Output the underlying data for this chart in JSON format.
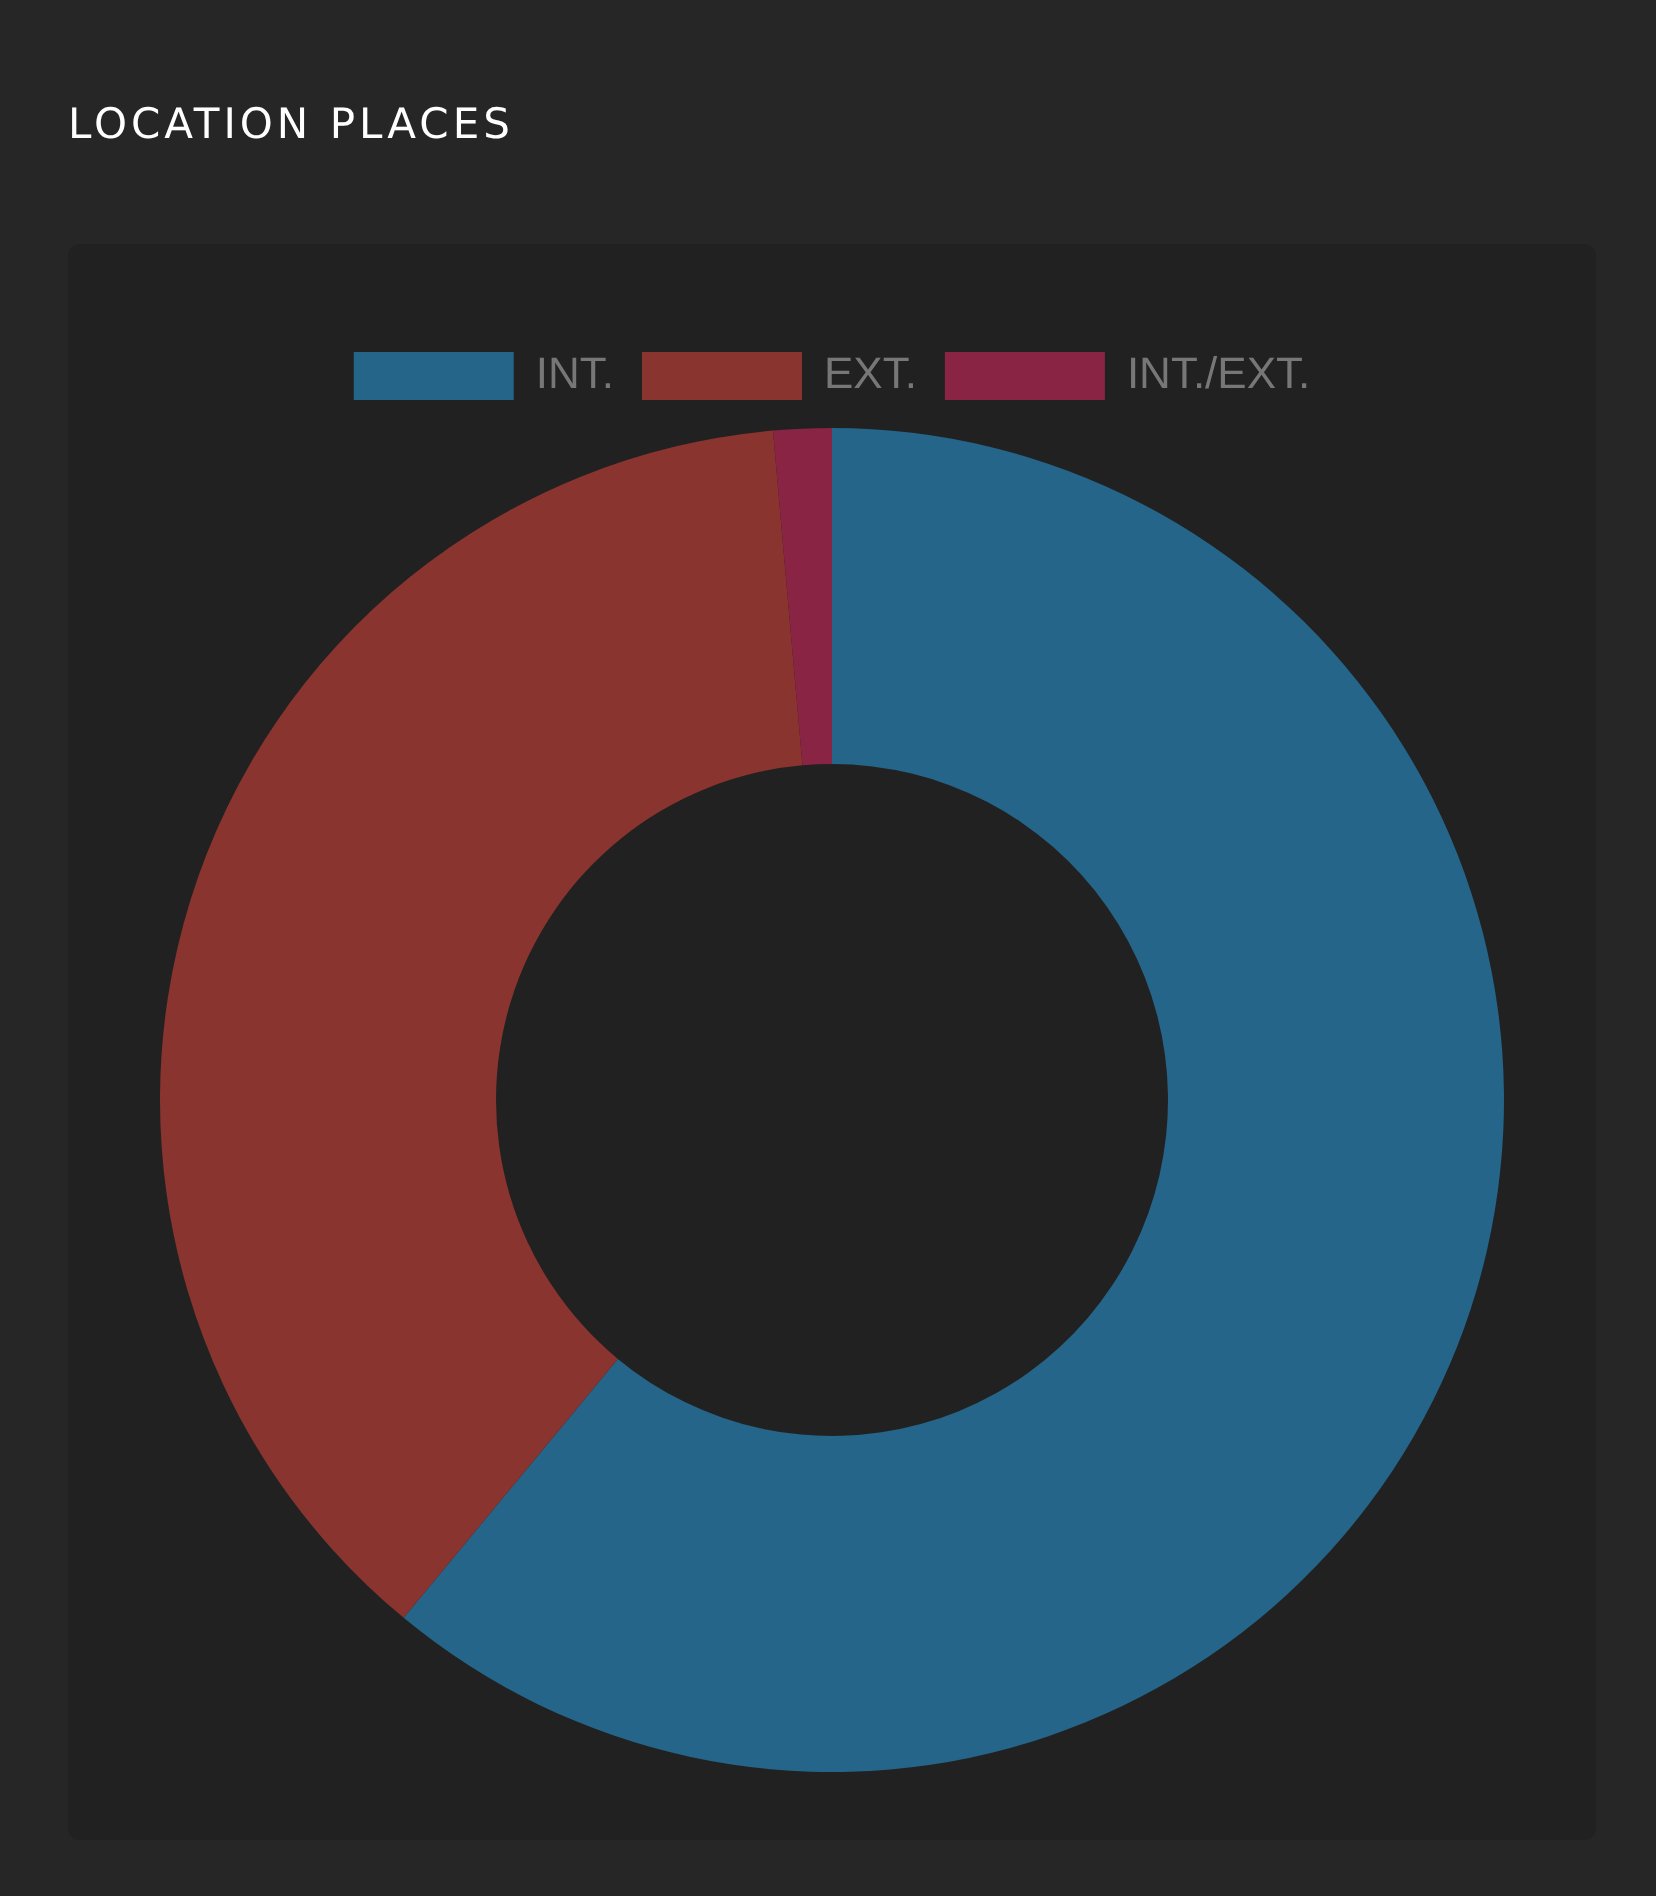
{
  "chart_data": {
    "type": "donut",
    "title": "LOCATION PLACES",
    "categories": [
      "INT.",
      "EXT.",
      "INT./EXT."
    ],
    "values": [
      61,
      37.6,
      1.4
    ],
    "colors": [
      "#246589",
      "#89342f",
      "#8a2444"
    ],
    "legend": "top"
  }
}
